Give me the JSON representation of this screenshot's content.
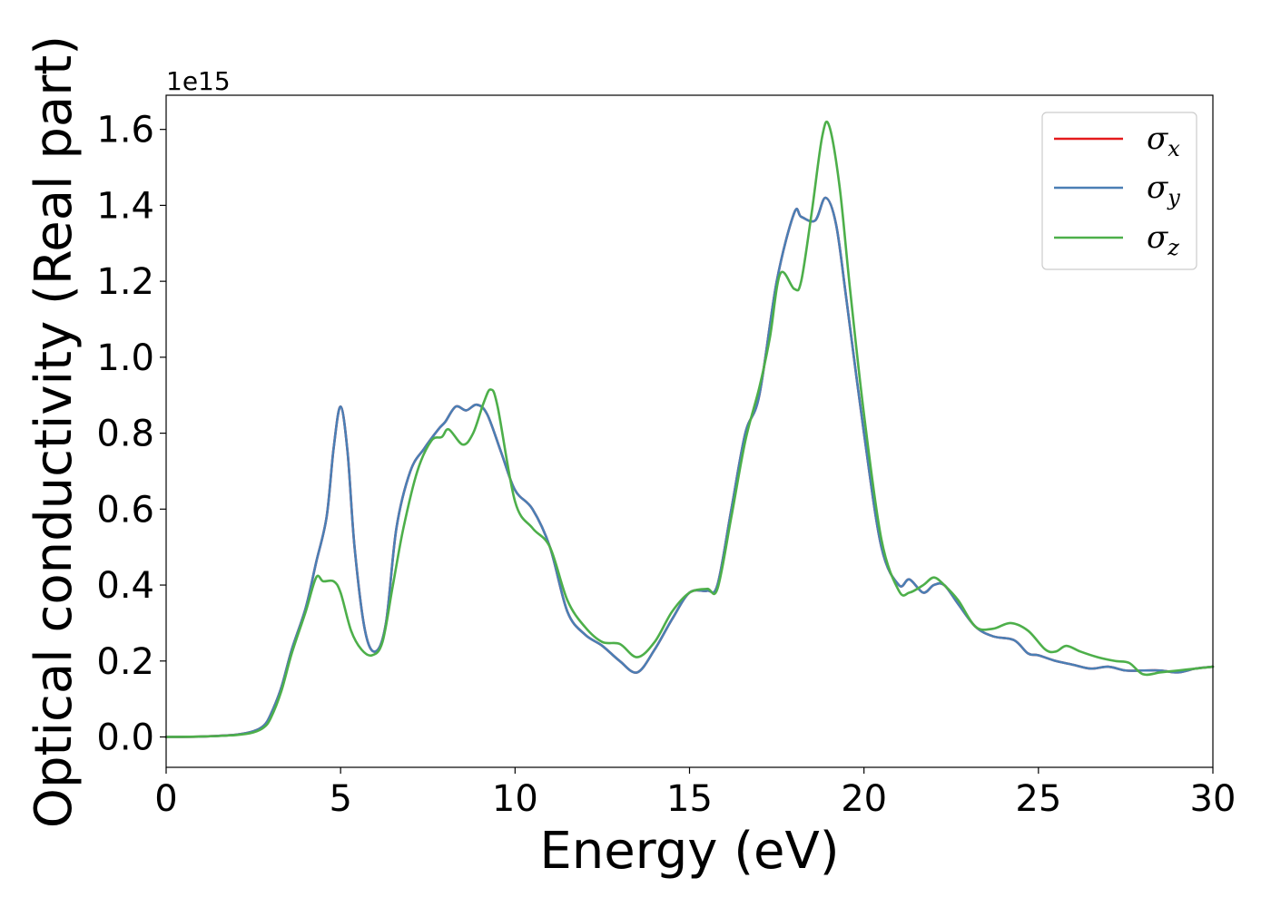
{
  "chart_data": {
    "type": "line",
    "xlabel": "Energy (eV)",
    "ylabel": "Optical conductivity (Real part)",
    "y_offset_label": "1e15",
    "xlim": [
      0,
      30
    ],
    "ylim": [
      -0.08,
      1.69
    ],
    "x_ticks": [
      0,
      5,
      10,
      15,
      20,
      25,
      30
    ],
    "x_tick_labels": [
      "0",
      "5",
      "10",
      "15",
      "20",
      "25",
      "30"
    ],
    "y_ticks": [
      0.0,
      0.2,
      0.4,
      0.6,
      0.8,
      1.0,
      1.2,
      1.4,
      1.6
    ],
    "y_tick_labels": [
      "0.0",
      "0.2",
      "0.4",
      "0.6",
      "0.8",
      "1.0",
      "1.2",
      "1.4",
      "1.6"
    ],
    "grid": false,
    "legend_position": "top-right",
    "series": [
      {
        "name": "σx",
        "base": "σ",
        "sub": "x",
        "color": "#e41a1c",
        "x": [
          0,
          1,
          2,
          2.5,
          2.8,
          3.0,
          3.3,
          3.6,
          4.0,
          4.3,
          4.6,
          4.8,
          5.0,
          5.2,
          5.4,
          5.7,
          6.0,
          6.3,
          6.6,
          7.0,
          7.4,
          7.8,
          8.0,
          8.3,
          8.6,
          8.9,
          9.2,
          9.6,
          10.0,
          10.5,
          11.0,
          11.5,
          12.0,
          12.5,
          13.0,
          13.5,
          14.0,
          14.5,
          15.0,
          15.5,
          15.8,
          16.2,
          16.6,
          17.0,
          17.5,
          18.0,
          18.2,
          18.6,
          18.9,
          19.2,
          19.5,
          20.0,
          20.5,
          21.0,
          21.3,
          21.7,
          22.0,
          22.3,
          22.7,
          23.2,
          23.7,
          24.3,
          24.7,
          25.0,
          25.5,
          26.0,
          26.5,
          27.0,
          27.5,
          28.0,
          28.5,
          29.0,
          29.5,
          30.0
        ],
        "values": [
          0,
          0.001,
          0.006,
          0.015,
          0.03,
          0.06,
          0.13,
          0.23,
          0.34,
          0.46,
          0.58,
          0.76,
          0.87,
          0.75,
          0.5,
          0.28,
          0.225,
          0.3,
          0.55,
          0.7,
          0.76,
          0.81,
          0.83,
          0.87,
          0.86,
          0.875,
          0.85,
          0.75,
          0.65,
          0.6,
          0.5,
          0.33,
          0.27,
          0.24,
          0.2,
          0.17,
          0.23,
          0.31,
          0.38,
          0.385,
          0.4,
          0.6,
          0.8,
          0.9,
          1.2,
          1.38,
          1.37,
          1.36,
          1.42,
          1.35,
          1.15,
          0.8,
          0.5,
          0.4,
          0.415,
          0.38,
          0.4,
          0.4,
          0.35,
          0.29,
          0.265,
          0.255,
          0.22,
          0.215,
          0.2,
          0.19,
          0.18,
          0.185,
          0.175,
          0.175,
          0.175,
          0.17,
          0.18,
          0.185
        ]
      },
      {
        "name": "σy",
        "base": "σ",
        "sub": "y",
        "color": "#4a7fb5",
        "x": [
          0,
          1,
          2,
          2.5,
          2.8,
          3.0,
          3.3,
          3.6,
          4.0,
          4.3,
          4.6,
          4.8,
          5.0,
          5.2,
          5.4,
          5.7,
          6.0,
          6.3,
          6.6,
          7.0,
          7.4,
          7.8,
          8.0,
          8.3,
          8.6,
          8.9,
          9.2,
          9.6,
          10.0,
          10.5,
          11.0,
          11.5,
          12.0,
          12.5,
          13.0,
          13.5,
          14.0,
          14.5,
          15.0,
          15.5,
          15.8,
          16.2,
          16.6,
          17.0,
          17.5,
          18.0,
          18.2,
          18.6,
          18.9,
          19.2,
          19.5,
          20.0,
          20.5,
          21.0,
          21.3,
          21.7,
          22.0,
          22.3,
          22.7,
          23.2,
          23.7,
          24.3,
          24.7,
          25.0,
          25.5,
          26.0,
          26.5,
          27.0,
          27.5,
          28.0,
          28.5,
          29.0,
          29.5,
          30.0
        ],
        "values": [
          0,
          0.001,
          0.006,
          0.015,
          0.03,
          0.06,
          0.13,
          0.23,
          0.34,
          0.46,
          0.58,
          0.76,
          0.87,
          0.75,
          0.5,
          0.28,
          0.225,
          0.3,
          0.55,
          0.7,
          0.76,
          0.81,
          0.83,
          0.87,
          0.86,
          0.875,
          0.85,
          0.75,
          0.65,
          0.6,
          0.5,
          0.33,
          0.27,
          0.24,
          0.2,
          0.17,
          0.23,
          0.31,
          0.38,
          0.385,
          0.4,
          0.6,
          0.8,
          0.9,
          1.2,
          1.38,
          1.37,
          1.36,
          1.42,
          1.35,
          1.15,
          0.8,
          0.5,
          0.4,
          0.415,
          0.38,
          0.4,
          0.4,
          0.35,
          0.29,
          0.265,
          0.255,
          0.22,
          0.215,
          0.2,
          0.19,
          0.18,
          0.185,
          0.175,
          0.175,
          0.175,
          0.17,
          0.18,
          0.185
        ]
      },
      {
        "name": "σz",
        "base": "σ",
        "sub": "z",
        "color": "#4daf4a",
        "x": [
          0,
          1,
          2,
          2.5,
          2.8,
          3.0,
          3.3,
          3.6,
          4.0,
          4.3,
          4.5,
          4.8,
          5.0,
          5.3,
          5.6,
          5.9,
          6.2,
          6.5,
          6.8,
          7.2,
          7.6,
          7.9,
          8.1,
          8.5,
          8.8,
          9.1,
          9.3,
          9.5,
          10.0,
          10.5,
          11.0,
          11.5,
          12.0,
          12.5,
          13.0,
          13.5,
          14.0,
          14.5,
          15.0,
          15.5,
          15.8,
          16.2,
          16.6,
          17.0,
          17.3,
          17.6,
          18.0,
          18.2,
          18.5,
          18.8,
          19.0,
          19.3,
          19.6,
          20.0,
          20.5,
          21.0,
          21.3,
          21.7,
          22.0,
          22.3,
          22.7,
          23.2,
          23.7,
          24.2,
          24.7,
          25.2,
          25.5,
          25.8,
          26.2,
          26.7,
          27.2,
          27.6,
          28.0,
          28.5,
          29.0,
          29.5,
          30.0
        ],
        "values": [
          0,
          0.001,
          0.005,
          0.012,
          0.025,
          0.05,
          0.12,
          0.22,
          0.33,
          0.42,
          0.41,
          0.41,
          0.38,
          0.28,
          0.23,
          0.215,
          0.25,
          0.4,
          0.55,
          0.7,
          0.78,
          0.79,
          0.81,
          0.77,
          0.8,
          0.88,
          0.915,
          0.87,
          0.62,
          0.55,
          0.5,
          0.36,
          0.29,
          0.25,
          0.245,
          0.21,
          0.25,
          0.33,
          0.38,
          0.39,
          0.39,
          0.58,
          0.78,
          0.92,
          1.05,
          1.22,
          1.18,
          1.2,
          1.38,
          1.58,
          1.61,
          1.45,
          1.18,
          0.85,
          0.52,
          0.385,
          0.38,
          0.4,
          0.42,
          0.4,
          0.36,
          0.29,
          0.285,
          0.3,
          0.28,
          0.23,
          0.225,
          0.24,
          0.225,
          0.21,
          0.2,
          0.195,
          0.165,
          0.17,
          0.175,
          0.18,
          0.185
        ]
      }
    ]
  }
}
